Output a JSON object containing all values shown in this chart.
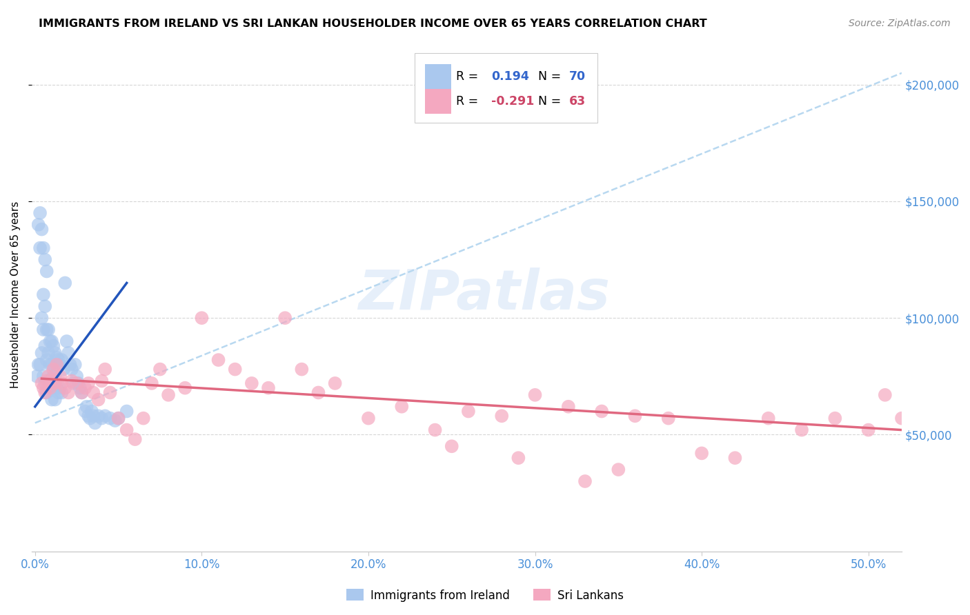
{
  "title": "IMMIGRANTS FROM IRELAND VS SRI LANKAN HOUSEHOLDER INCOME OVER 65 YEARS CORRELATION CHART",
  "source": "Source: ZipAtlas.com",
  "tick_color": "#4a90d9",
  "ylabel": "Householder Income Over 65 years",
  "xlim": [
    -0.002,
    0.52
  ],
  "ylim": [
    0,
    220000
  ],
  "xtick_vals": [
    0.0,
    0.1,
    0.2,
    0.3,
    0.4,
    0.5
  ],
  "xtick_labels": [
    "0.0%",
    "10.0%",
    "20.0%",
    "30.0%",
    "40.0%",
    "50.0%"
  ],
  "ytick_values": [
    50000,
    100000,
    150000,
    200000
  ],
  "ytick_labels": [
    "$50,000",
    "$100,000",
    "$150,000",
    "$200,000"
  ],
  "blue_color": "#aac8ee",
  "pink_color": "#f4a8c0",
  "blue_line_color": "#2255bb",
  "pink_line_color": "#e06880",
  "dashed_color": "#b8d8f0",
  "watermark_color": "#c8dff0",
  "legend_box_blue": "#aac8ee",
  "legend_box_pink": "#f4a8c0",
  "blue_R_text": "0.194",
  "blue_N_text": "70",
  "pink_R_text": "-0.291",
  "pink_N_text": "63",
  "blue_val_color": "#3366cc",
  "pink_val_color": "#cc4466",
  "blue_scatter_x": [
    0.001,
    0.002,
    0.002,
    0.003,
    0.003,
    0.003,
    0.004,
    0.004,
    0.004,
    0.005,
    0.005,
    0.005,
    0.005,
    0.006,
    0.006,
    0.006,
    0.006,
    0.007,
    0.007,
    0.007,
    0.007,
    0.008,
    0.008,
    0.008,
    0.009,
    0.009,
    0.009,
    0.01,
    0.01,
    0.01,
    0.01,
    0.011,
    0.011,
    0.012,
    0.012,
    0.012,
    0.013,
    0.013,
    0.014,
    0.014,
    0.015,
    0.015,
    0.016,
    0.016,
    0.017,
    0.018,
    0.019,
    0.02,
    0.021,
    0.022,
    0.023,
    0.024,
    0.025,
    0.026,
    0.027,
    0.028,
    0.03,
    0.031,
    0.032,
    0.033,
    0.034,
    0.035,
    0.036,
    0.038,
    0.04,
    0.042,
    0.045,
    0.048,
    0.05,
    0.055
  ],
  "blue_scatter_y": [
    75000,
    140000,
    80000,
    145000,
    130000,
    80000,
    138000,
    100000,
    85000,
    130000,
    110000,
    95000,
    75000,
    125000,
    105000,
    88000,
    72000,
    120000,
    95000,
    82000,
    68000,
    95000,
    85000,
    73000,
    90000,
    80000,
    70000,
    90000,
    80000,
    72000,
    65000,
    88000,
    75000,
    85000,
    75000,
    65000,
    83000,
    70000,
    82000,
    68000,
    80000,
    70000,
    82000,
    68000,
    78000,
    115000,
    90000,
    85000,
    80000,
    78000,
    72000,
    80000,
    75000,
    72000,
    70000,
    68000,
    60000,
    62000,
    58000,
    57000,
    60000,
    58000,
    55000,
    58000,
    57000,
    58000,
    57000,
    56000,
    57000,
    60000
  ],
  "pink_scatter_x": [
    0.004,
    0.005,
    0.006,
    0.007,
    0.008,
    0.009,
    0.01,
    0.011,
    0.012,
    0.013,
    0.015,
    0.016,
    0.018,
    0.02,
    0.022,
    0.025,
    0.028,
    0.03,
    0.032,
    0.035,
    0.038,
    0.04,
    0.042,
    0.045,
    0.05,
    0.055,
    0.06,
    0.065,
    0.07,
    0.075,
    0.08,
    0.09,
    0.1,
    0.11,
    0.12,
    0.13,
    0.14,
    0.15,
    0.16,
    0.17,
    0.18,
    0.2,
    0.22,
    0.24,
    0.26,
    0.28,
    0.3,
    0.32,
    0.34,
    0.36,
    0.38,
    0.4,
    0.42,
    0.44,
    0.46,
    0.48,
    0.5,
    0.51,
    0.52,
    0.33,
    0.25,
    0.29,
    0.35
  ],
  "pink_scatter_y": [
    72000,
    70000,
    68000,
    73000,
    75000,
    70000,
    73000,
    78000,
    72000,
    80000,
    75000,
    72000,
    70000,
    68000,
    73000,
    72000,
    68000,
    70000,
    72000,
    68000,
    65000,
    73000,
    78000,
    68000,
    57000,
    52000,
    48000,
    57000,
    72000,
    78000,
    67000,
    70000,
    100000,
    82000,
    78000,
    72000,
    70000,
    100000,
    78000,
    68000,
    72000,
    57000,
    62000,
    52000,
    60000,
    58000,
    67000,
    62000,
    60000,
    58000,
    57000,
    42000,
    40000,
    57000,
    52000,
    57000,
    52000,
    67000,
    57000,
    30000,
    45000,
    40000,
    35000
  ],
  "blue_line_x0": 0.0,
  "blue_line_x1": 0.055,
  "blue_line_y0": 62000,
  "blue_line_y1": 115000,
  "pink_line_x0": 0.004,
  "pink_line_x1": 0.52,
  "pink_line_y0": 74000,
  "pink_line_y1": 52000,
  "dash_line_x0": 0.0,
  "dash_line_x1": 0.52,
  "dash_line_y0": 55000,
  "dash_line_y1": 205000
}
